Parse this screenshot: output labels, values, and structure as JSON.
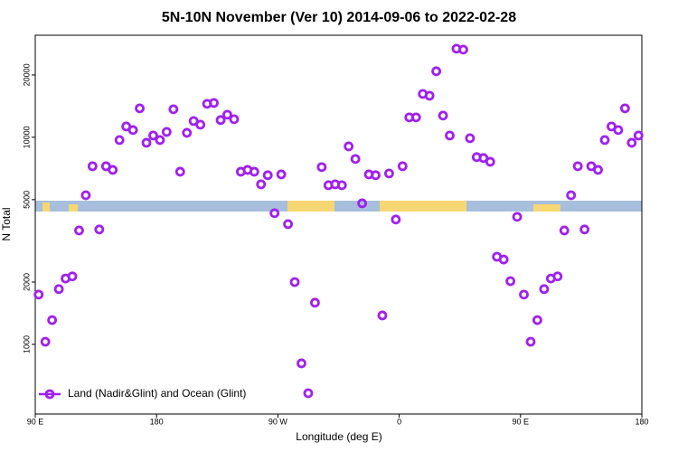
{
  "chart_data": {
    "type": "scatter",
    "title": "5N-10N November (Ver 10)   2014-09-06 to 2022-02-28",
    "x_label": "Longitude (deg E)",
    "y_label": "N Total",
    "log_y": true,
    "legend_position": "bottom-left",
    "marker": "open-circle",
    "xlim": [
      90,
      540
    ],
    "ylim": [
      461,
      31100
    ],
    "xticks": [
      {
        "value": 90,
        "label": "90 E"
      },
      180,
      {
        "value": 270,
        "label": "90 W"
      },
      {
        "value": 360,
        "label": "0"
      },
      {
        "value": 450,
        "label": "90 E"
      },
      {
        "value": 540,
        "label": "180"
      }
    ],
    "yticks": [
      1000,
      2000,
      5000,
      10000,
      20000
    ],
    "series": [
      {
        "name": "Land (Nadir&Glint) and Ocean (Glint)",
        "color": "#a020f0",
        "x": [
          92.5,
          97.5,
          102.5,
          107.5,
          112.5,
          117.5,
          122.5,
          127.5,
          132.5,
          137.5,
          142.5,
          147.5,
          152.5,
          157.5,
          162.5,
          167.5,
          172.5,
          177.5,
          182.5,
          187.5,
          192.5,
          197.5,
          202.5,
          207.5,
          212.5,
          217.5,
          222.5,
          227.5,
          232.5,
          237.5,
          242.5,
          247.5,
          252.5,
          257.5,
          262.5,
          267.5,
          272.5,
          277.5,
          282.5,
          287.5,
          292.5,
          297.5,
          302.5,
          307.5,
          312.5,
          317.5,
          322.5,
          327.5,
          332.5,
          337.5,
          342.5,
          347.5,
          352.5,
          357.5,
          362.5,
          367.5,
          372.5,
          377.5,
          382.5,
          387.5,
          392.5,
          397.5,
          402.5,
          407.5,
          412.5,
          417.5,
          422.5,
          427.5,
          432.5,
          437.5,
          442.5,
          447.5,
          452.5,
          457.5,
          462.5,
          467.5,
          472.5,
          477.5,
          482.5,
          487.5,
          492.5,
          497.5,
          502.5,
          507.5,
          512.5,
          517.5,
          522.5,
          527.5,
          532.5,
          537.5
        ],
        "values": [
          1740,
          1030,
          1310,
          1850,
          2080,
          2130,
          3550,
          5250,
          7250,
          3590,
          7250,
          6960,
          9700,
          11280,
          10840,
          13800,
          9410,
          10200,
          9700,
          10620,
          13660,
          6820,
          10510,
          11980,
          11510,
          14510,
          14650,
          12110,
          12860,
          12230,
          6820,
          6960,
          6820,
          5930,
          6560,
          4300,
          6620,
          3810,
          2000,
          810,
          581,
          1590,
          7180,
          5870,
          5930,
          5870,
          9040,
          7860,
          4800,
          6620,
          6560,
          1380,
          6690,
          4010,
          7250,
          12480,
          12480,
          16200,
          15880,
          20840,
          12730,
          10200,
          26790,
          26520,
          9900,
          8020,
          7940,
          7620,
          2650,
          2570,
          2020,
          4130,
          1740,
          1030,
          1310,
          1850,
          2080,
          2130,
          3550,
          5250,
          7250,
          3590,
          7250,
          6960,
          9700,
          11280,
          10840,
          13800,
          9410,
          10200
        ]
      }
    ]
  }
}
